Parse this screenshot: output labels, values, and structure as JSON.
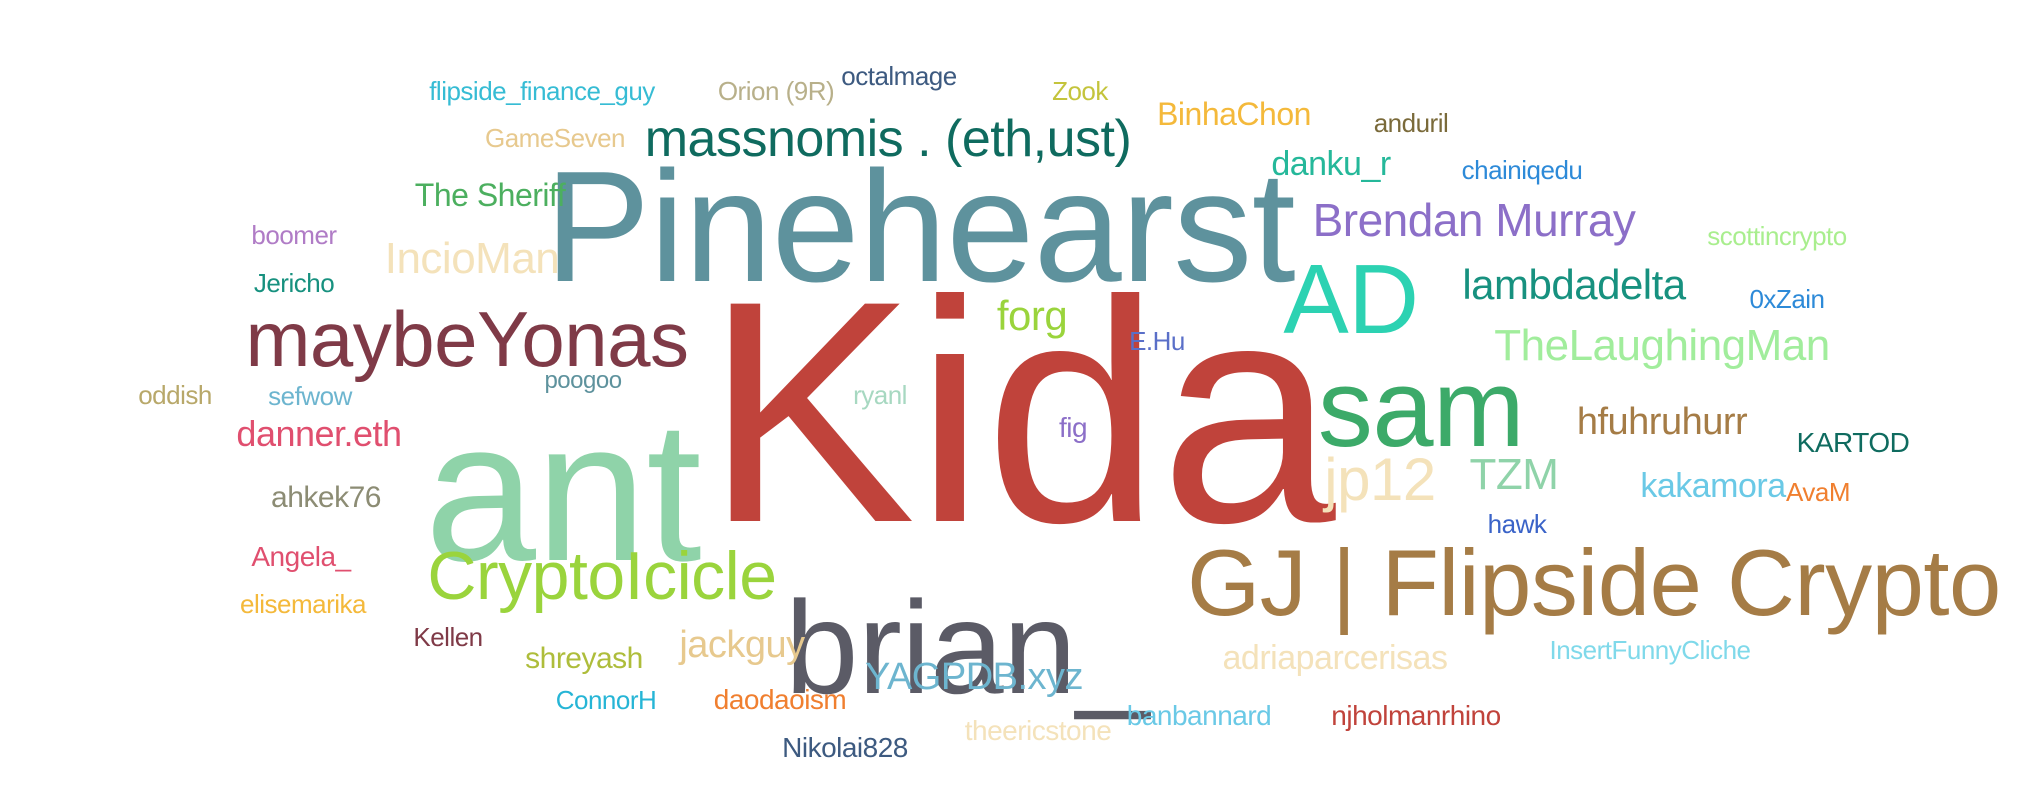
{
  "words": [
    {
      "text": "Kida",
      "color": "#c0433b"
    },
    {
      "text": "ant",
      "color": "#8fd3a9"
    },
    {
      "text": "Pinehearst",
      "color": "#5e929d"
    },
    {
      "text": "brian_",
      "color": "#5b5b66"
    },
    {
      "text": "GJ | Flipside Crypto",
      "color": "#a57c46"
    },
    {
      "text": "sam",
      "color": "#3caa69"
    },
    {
      "text": "AD",
      "color": "#2cd2b2"
    },
    {
      "text": "maybeYonas",
      "color": "#7f3a47"
    },
    {
      "text": "CryptoIcicle",
      "color": "#9ad43c"
    },
    {
      "text": "massnomis . (eth,ust)",
      "color": "#0f6b5f"
    },
    {
      "text": "Brendan Murray",
      "color": "#8c6fc8"
    },
    {
      "text": "TheLaughingMan",
      "color": "#a1ed9c"
    },
    {
      "text": "lambdadelta",
      "color": "#17917f"
    },
    {
      "text": "jp12",
      "color": "#f4e2ba"
    },
    {
      "text": "YAGPDB.xyz",
      "color": "#6db5cf"
    },
    {
      "text": "hfuhruhurr",
      "color": "#a57c46"
    },
    {
      "text": "IncioMan",
      "color": "#f4e2ba"
    },
    {
      "text": "forg",
      "color": "#9ad43c"
    },
    {
      "text": "TZM",
      "color": "#8fd3a9"
    },
    {
      "text": "jackguy",
      "color": "#e7c98e"
    },
    {
      "text": "danner.eth",
      "color": "#e04f6f"
    },
    {
      "text": "kakamora",
      "color": "#6ac9e6"
    },
    {
      "text": "adriaparcerisas",
      "color": "#f4e2ba"
    },
    {
      "text": "danku_r",
      "color": "#25b89a"
    },
    {
      "text": "BinhaChon",
      "color": "#f4b93b"
    },
    {
      "text": "The Sheriff",
      "color": "#4caf5f"
    },
    {
      "text": "ahkek76",
      "color": "#8c8c74"
    },
    {
      "text": "InsertFunnyCliche",
      "color": "#7fd9ea"
    },
    {
      "text": "shreyash",
      "color": "#aebd3b"
    },
    {
      "text": "KARTOD",
      "color": "#0f6b5f"
    },
    {
      "text": "daodaoism",
      "color": "#f07f2f"
    },
    {
      "text": "scottincrypto",
      "color": "#a9ee8e"
    },
    {
      "text": "theericstone",
      "color": "#f4e2ba"
    },
    {
      "text": "banbannard",
      "color": "#6ac9e6"
    },
    {
      "text": "njholmanrhino",
      "color": "#c0433b"
    },
    {
      "text": "Angela_",
      "color": "#e04f6f"
    },
    {
      "text": "Nikolai828",
      "color": "#3d5a80"
    },
    {
      "text": "flipside_finance_guy",
      "color": "#36bcd4"
    },
    {
      "text": "GameSeven",
      "color": "#e7c98e"
    },
    {
      "text": "chainiqedu",
      "color": "#2d8ad8"
    },
    {
      "text": "anduril",
      "color": "#7a6a3a"
    },
    {
      "text": "Orion (9R)",
      "color": "#b8b08a"
    },
    {
      "text": "octalmage",
      "color": "#3d5a80"
    },
    {
      "text": "Zook",
      "color": "#c4c43c"
    },
    {
      "text": "ConnorH",
      "color": "#26b5d6"
    },
    {
      "text": "Kellen",
      "color": "#7f3a47"
    },
    {
      "text": "elisemarika",
      "color": "#f4b93b"
    },
    {
      "text": "sefwow",
      "color": "#6db5cf"
    },
    {
      "text": "0xZain",
      "color": "#2d8ad8"
    },
    {
      "text": "Jericho",
      "color": "#17917f"
    },
    {
      "text": "oddish",
      "color": "#b8a86a"
    },
    {
      "text": "boomer",
      "color": "#b07cc6"
    },
    {
      "text": "ryanl",
      "color": "#a7d8c1"
    },
    {
      "text": "E.Hu",
      "color": "#5a6fc8"
    },
    {
      "text": "poogoo",
      "color": "#5e929d"
    },
    {
      "text": "hawk",
      "color": "#3a63c8"
    },
    {
      "text": "AvaM",
      "color": "#f07f2f"
    },
    {
      "text": "fig",
      "color": "#8c6fc8"
    }
  ]
}
